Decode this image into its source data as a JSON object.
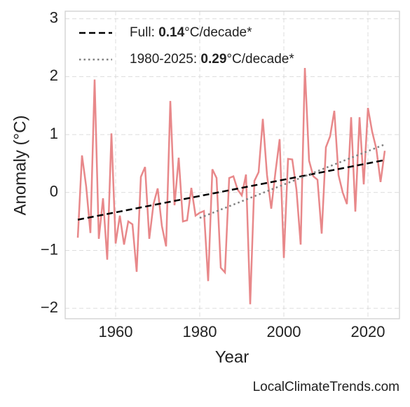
{
  "chart_data": {
    "type": "line",
    "xlabel": "Year",
    "ylabel": "Anomaly (°C)",
    "source": "LocalClimateTrends.com",
    "xlim": [
      1948,
      2027.5
    ],
    "ylim": [
      -2.18,
      3.13
    ],
    "xticks": [
      1960,
      1980,
      2000,
      2020
    ],
    "yticks": [
      {
        "value": -2,
        "label": "−2"
      },
      {
        "value": -1,
        "label": "−1"
      },
      0,
      1,
      2,
      3
    ],
    "grid": true,
    "legend": "upper left",
    "series": [
      {
        "color": "#e8888a",
        "style": "solid",
        "x": [
          1951,
          1952,
          1953,
          1954,
          1955,
          1956,
          1957,
          1958,
          1959,
          1960,
          1961,
          1962,
          1963,
          1964,
          1965,
          1966,
          1967,
          1968,
          1969,
          1970,
          1971,
          1972,
          1973,
          1974,
          1975,
          1976,
          1977,
          1978,
          1979,
          1980,
          1981,
          1982,
          1983,
          1984,
          1985,
          1986,
          1987,
          1988,
          1989,
          1990,
          1991,
          1992,
          1993,
          1994,
          1995,
          1996,
          1997,
          1998,
          1999,
          2000,
          2001,
          2002,
          2003,
          2004,
          2005,
          2006,
          2007,
          2008,
          2009,
          2010,
          2011,
          2012,
          2013,
          2014,
          2015,
          2016,
          2017,
          2018,
          2019,
          2020,
          2021,
          2022,
          2023,
          2024
        ],
        "values": [
          -0.78,
          0.64,
          0.1,
          -0.7,
          1.95,
          -0.8,
          -0.1,
          -1.16,
          1.02,
          -0.88,
          -0.4,
          -0.9,
          -0.5,
          -0.55,
          -1.37,
          0.27,
          0.44,
          -0.8,
          -0.2,
          0.07,
          -0.58,
          -0.93,
          1.58,
          -0.22,
          0.6,
          -0.5,
          -0.48,
          0.08,
          -0.4,
          -0.35,
          -0.32,
          -1.53,
          0.4,
          0.25,
          -1.3,
          -1.38,
          0.25,
          0.28,
          0.05,
          -0.05,
          0.31,
          -1.93,
          0.2,
          0.35,
          1.27,
          0.3,
          -0.28,
          0.35,
          0.92,
          -1.13,
          0.58,
          0.57,
          0.05,
          -0.9,
          2.15,
          0.55,
          0.28,
          0.22,
          -0.71,
          0.78,
          0.97,
          1.41,
          0.3,
          0.0,
          -0.2,
          1.3,
          -0.33,
          1.3,
          0.14,
          1.46,
          1.05,
          0.75,
          0.18,
          0.72
        ]
      },
      {
        "name_parts": [
          "Full: ",
          "0.14",
          "°C/decade*"
        ],
        "color": "#000000",
        "style": "dashed",
        "x": [
          1951,
          2024
        ],
        "values": [
          -0.47,
          0.56
        ]
      },
      {
        "name_parts": [
          "1980-2025: ",
          "0.29",
          "°C/decade*"
        ],
        "color": "#808080",
        "style": "dotted",
        "x": [
          1980,
          2024
        ],
        "values": [
          -0.44,
          0.83
        ]
      }
    ]
  }
}
